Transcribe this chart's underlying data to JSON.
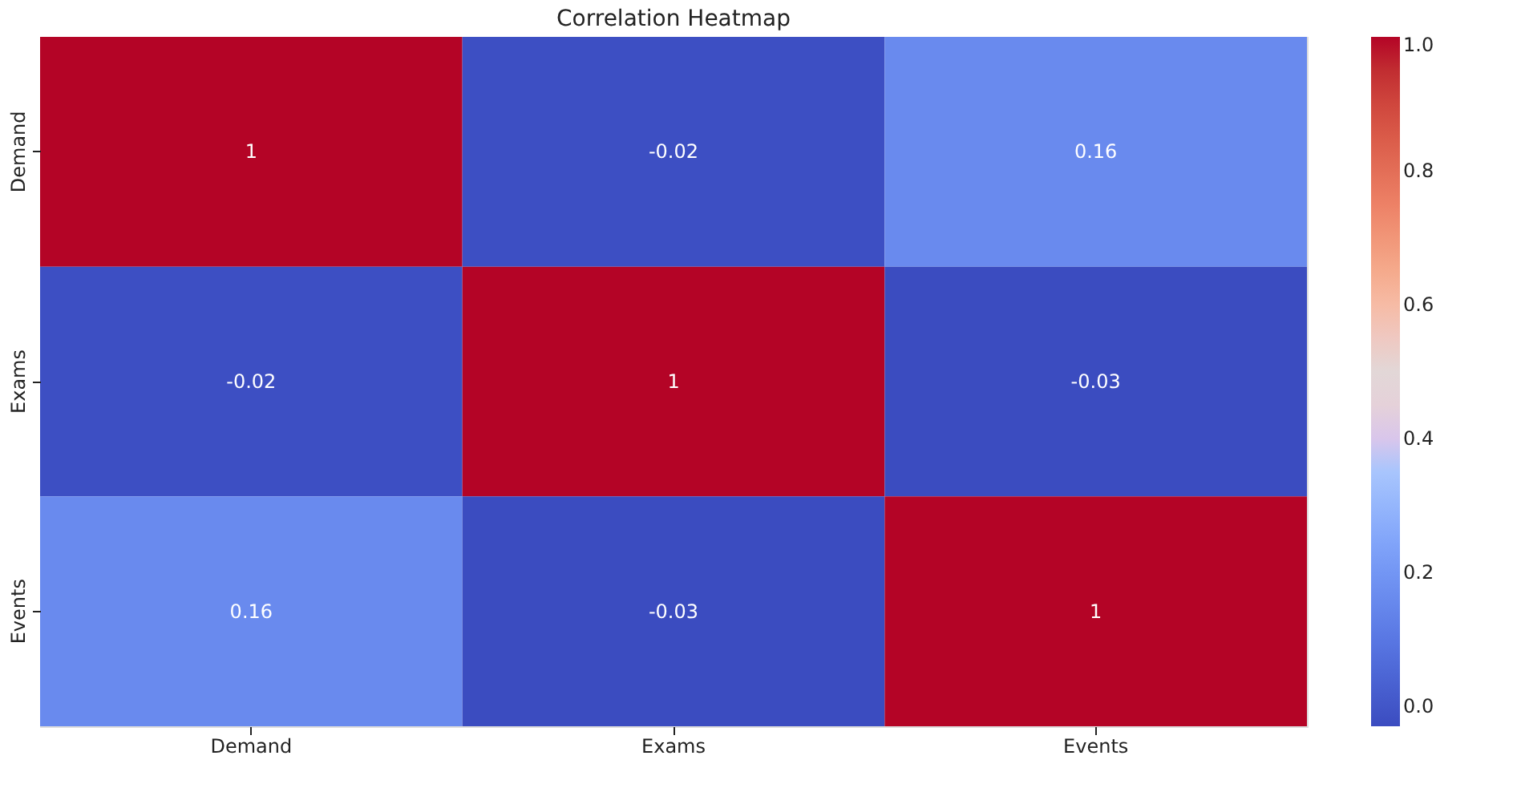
{
  "chart_data": {
    "type": "heatmap",
    "title": "Correlation Heatmap",
    "categories": [
      "Demand",
      "Exams",
      "Events"
    ],
    "y_categories": [
      "Demand",
      "Exams",
      "Events"
    ],
    "cells": [
      [
        1,
        -0.02,
        0.16
      ],
      [
        -0.02,
        1,
        -0.03
      ],
      [
        0.16,
        -0.03,
        1
      ]
    ],
    "data_labels": true,
    "clim": [
      -0.03,
      1
    ],
    "cticks": [
      {
        "value": 0,
        "label": "0.0"
      },
      {
        "value": 0.2,
        "label": "0.2"
      },
      {
        "value": 0.4,
        "label": "0.4"
      },
      {
        "value": 0.6,
        "label": "0.6"
      },
      {
        "value": 0.8,
        "label": "0.8"
      },
      {
        "value": 1,
        "label": "1.0"
      }
    ],
    "grid": false
  }
}
